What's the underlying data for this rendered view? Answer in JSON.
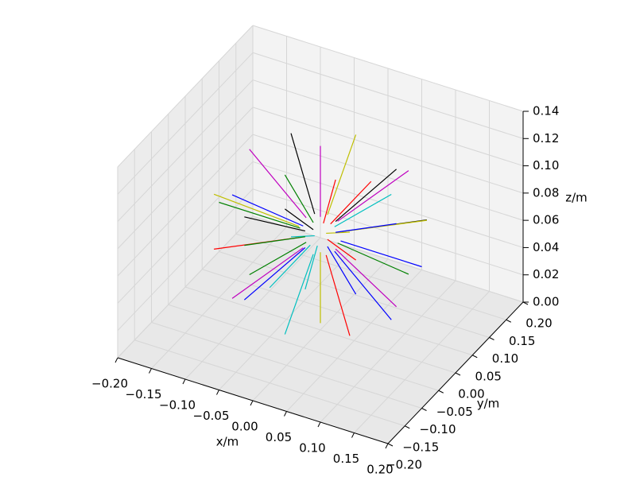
{
  "chart_data": {
    "type": "line3d",
    "xlabel": "x/m",
    "ylabel": "y/m",
    "zlabel": "z/m",
    "xlim": [
      -0.2,
      0.2
    ],
    "ylim": [
      -0.2,
      0.2
    ],
    "zlim": [
      0,
      0.14
    ],
    "xticks": [
      {
        "value": -0.2,
        "label": "−0.20"
      },
      {
        "value": -0.15,
        "label": "−0.15"
      },
      {
        "value": -0.1,
        "label": "−0.10"
      },
      {
        "value": -0.05,
        "label": "−0.05"
      },
      {
        "value": 0,
        "label": "0.00"
      },
      {
        "value": 0.05,
        "label": "0.05"
      },
      {
        "value": 0.1,
        "label": "0.10"
      },
      {
        "value": 0.15,
        "label": "0.15"
      },
      {
        "value": 0.2,
        "label": "0.20"
      }
    ],
    "yticks": [
      {
        "value": -0.2,
        "label": "−0.20"
      },
      {
        "value": -0.15,
        "label": "−0.15"
      },
      {
        "value": -0.1,
        "label": "−0.10"
      },
      {
        "value": -0.05,
        "label": "−0.05"
      },
      {
        "value": 0,
        "label": "0.00"
      },
      {
        "value": 0.05,
        "label": "0.05"
      },
      {
        "value": 0.1,
        "label": "0.10"
      },
      {
        "value": 0.15,
        "label": "0.15"
      },
      {
        "value": 0.2,
        "label": "0.20"
      }
    ],
    "zticks": [
      {
        "value": 0,
        "label": "0.00"
      },
      {
        "value": 0.02,
        "label": "0.02"
      },
      {
        "value": 0.04,
        "label": "0.04"
      },
      {
        "value": 0.06,
        "label": "0.06"
      },
      {
        "value": 0.08,
        "label": "0.08"
      },
      {
        "value": 0.1,
        "label": "0.10"
      },
      {
        "value": 0.12,
        "label": "0.12"
      },
      {
        "value": 0.14,
        "label": "0.14"
      }
    ],
    "grid": true,
    "series": [
      {
        "color": "#0000ff",
        "x": [
          0.03,
          0.15
        ],
        "y": [
          0,
          0
        ],
        "z": [
          0.07,
          0.07
        ]
      },
      {
        "color": "#008000",
        "x": [
          -0.03,
          -0.15
        ],
        "y": [
          0,
          0
        ],
        "z": [
          0.07,
          0.07
        ]
      },
      {
        "color": "#ff0000",
        "x": [
          0,
          0
        ],
        "y": [
          0.03,
          0.15
        ],
        "z": [
          0.07,
          0.07
        ]
      },
      {
        "color": "#00bfbf",
        "x": [
          0,
          0
        ],
        "y": [
          -0.03,
          -0.15
        ],
        "z": [
          0.07,
          0.07
        ]
      },
      {
        "color": "#bf00bf",
        "x": [
          0,
          0
        ],
        "y": [
          0,
          0
        ],
        "z": [
          0.083,
          0.135
        ]
      },
      {
        "color": "#bfbf00",
        "x": [
          0,
          0
        ],
        "y": [
          0,
          0
        ],
        "z": [
          0.057,
          0.005
        ]
      },
      {
        "color": "#000000",
        "x": [
          0.021,
          0.105
        ],
        "y": [
          0.021,
          0.105
        ],
        "z": [
          0.07,
          0.07
        ]
      },
      {
        "color": "#0000ff",
        "x": [
          0.021,
          0.105
        ],
        "y": [
          -0.021,
          -0.105
        ],
        "z": [
          0.07,
          0.07
        ]
      },
      {
        "color": "#008000",
        "x": [
          -0.021,
          -0.105
        ],
        "y": [
          0.021,
          0.105
        ],
        "z": [
          0.07,
          0.07
        ]
      },
      {
        "color": "#ff0000",
        "x": [
          -0.021,
          -0.105
        ],
        "y": [
          -0.021,
          -0.105
        ],
        "z": [
          0.07,
          0.07
        ]
      },
      {
        "color": "#00bfbf",
        "x": [
          0.021,
          0.105
        ],
        "y": [
          0,
          0
        ],
        "z": [
          0.079,
          0.116
        ]
      },
      {
        "color": "#bf00bf",
        "x": [
          -0.021,
          -0.105
        ],
        "y": [
          0,
          0
        ],
        "z": [
          0.079,
          0.116
        ]
      },
      {
        "color": "#bfbf00",
        "x": [
          0,
          0
        ],
        "y": [
          0.021,
          0.105
        ],
        "z": [
          0.079,
          0.116
        ]
      },
      {
        "color": "#000000",
        "x": [
          0,
          0
        ],
        "y": [
          -0.021,
          -0.105
        ],
        "z": [
          0.079,
          0.116
        ]
      },
      {
        "color": "#0000ff",
        "x": [
          0.021,
          0.105
        ],
        "y": [
          0,
          0
        ],
        "z": [
          0.061,
          0.024
        ]
      },
      {
        "color": "#008000",
        "x": [
          -0.021,
          -0.105
        ],
        "y": [
          0,
          0
        ],
        "z": [
          0.061,
          0.024
        ]
      },
      {
        "color": "#ff0000",
        "x": [
          0,
          0
        ],
        "y": [
          0.021,
          0.105
        ],
        "z": [
          0.061,
          0.024
        ]
      },
      {
        "color": "#00bfbf",
        "x": [
          0,
          0
        ],
        "y": [
          -0.021,
          -0.105
        ],
        "z": [
          0.061,
          0.024
        ]
      },
      {
        "color": "#bf00bf",
        "x": [
          0.017,
          0.087
        ],
        "y": [
          0.017,
          0.087
        ],
        "z": [
          0.078,
          0.108
        ]
      },
      {
        "color": "#bfbf00",
        "x": [
          0.017,
          0.087
        ],
        "y": [
          -0.017,
          -0.087
        ],
        "z": [
          0.078,
          0.108
        ]
      },
      {
        "color": "#000000",
        "x": [
          -0.017,
          -0.087
        ],
        "y": [
          0.017,
          0.087
        ],
        "z": [
          0.078,
          0.108
        ]
      },
      {
        "color": "#0000ff",
        "x": [
          -0.017,
          -0.087
        ],
        "y": [
          -0.017,
          -0.087
        ],
        "z": [
          0.078,
          0.108
        ]
      },
      {
        "color": "#008000",
        "x": [
          0.017,
          0.087
        ],
        "y": [
          0.017,
          0.087
        ],
        "z": [
          0.062,
          0.032
        ]
      },
      {
        "color": "#ff0000",
        "x": [
          0.017,
          0.087
        ],
        "y": [
          -0.017,
          -0.087
        ],
        "z": [
          0.062,
          0.032
        ]
      },
      {
        "color": "#00bfbf",
        "x": [
          -0.017,
          -0.087
        ],
        "y": [
          0.017,
          0.087
        ],
        "z": [
          0.062,
          0.032
        ]
      },
      {
        "color": "#bf00bf",
        "x": [
          -0.017,
          -0.087
        ],
        "y": [
          -0.017,
          -0.087
        ],
        "z": [
          0.062,
          0.032
        ]
      },
      {
        "color": "#bfbf00",
        "x": [
          0.027,
          0.135
        ],
        "y": [
          0.009,
          0.045
        ],
        "z": [
          0.074,
          0.09
        ]
      },
      {
        "color": "#000000",
        "x": [
          -0.027,
          -0.135
        ],
        "y": [
          0.009,
          0.045
        ],
        "z": [
          0.066,
          0.05
        ]
      },
      {
        "color": "#0000ff",
        "x": [
          0.009,
          0.045
        ],
        "y": [
          0.027,
          0.135
        ],
        "z": [
          0.066,
          0.05
        ]
      },
      {
        "color": "#008000",
        "x": [
          -0.009,
          -0.045
        ],
        "y": [
          -0.027,
          -0.135
        ],
        "z": [
          0.074,
          0.09
        ]
      },
      {
        "color": "#ff0000",
        "x": [
          0.009,
          0.045
        ],
        "y": [
          -0.009,
          -0.045
        ],
        "z": [
          0.082,
          0.129
        ]
      },
      {
        "color": "#00bfbf",
        "x": [
          -0.009,
          -0.045
        ],
        "y": [
          0.009,
          0.045
        ],
        "z": [
          0.058,
          0.011
        ]
      },
      {
        "color": "#bf00bf",
        "x": [
          0.027,
          0.135
        ],
        "y": [
          -0.009,
          -0.045
        ],
        "z": [
          0.066,
          0.05
        ]
      },
      {
        "color": "#bfbf00",
        "x": [
          -0.027,
          -0.135
        ],
        "y": [
          -0.009,
          -0.045
        ],
        "z": [
          0.074,
          0.09
        ]
      },
      {
        "color": "#000000",
        "x": [
          0.009,
          0.045
        ],
        "y": [
          0.027,
          0.135
        ],
        "z": [
          0.074,
          0.09
        ]
      },
      {
        "color": "#0000ff",
        "x": [
          -0.009,
          -0.045
        ],
        "y": [
          -0.027,
          -0.135
        ],
        "z": [
          0.066,
          0.05
        ]
      }
    ]
  }
}
